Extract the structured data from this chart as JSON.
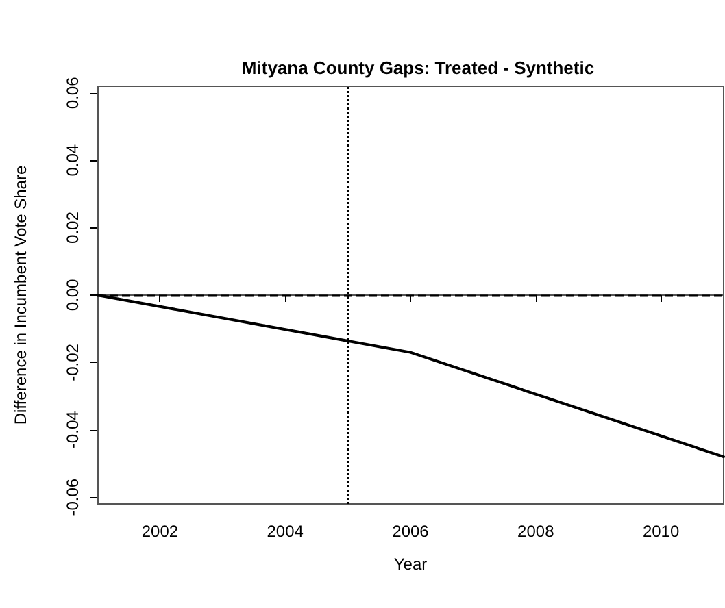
{
  "chart_data": {
    "type": "line",
    "title": "Mityana County Gaps: Treated - Synthetic",
    "xlabel": "Year",
    "ylabel": "Difference in Incumbent Vote Share",
    "x": [
      2001,
      2006,
      2011
    ],
    "series": [
      {
        "color": "#000000",
        "values": [
          0,
          -0.017,
          -0.048
        ]
      }
    ],
    "xlim": [
      2001,
      2011
    ],
    "xticks": [
      2002,
      2004,
      2006,
      2008,
      2010
    ],
    "ylim": [
      -0.062,
      0.062
    ],
    "yticks": [
      {
        "value": -0.06,
        "label": "-0.06"
      },
      {
        "value": -0.04,
        "label": "-0.04"
      },
      {
        "value": -0.02,
        "label": "-0.02"
      },
      {
        "value": 0,
        "label": "0.00"
      },
      {
        "value": 0.02,
        "label": "0.02"
      },
      {
        "value": 0.04,
        "label": "0.04"
      },
      {
        "value": 0.06,
        "label": "0.06"
      }
    ],
    "ref_lines": [
      {
        "axis": "y",
        "value": 0,
        "line_style": "dashed",
        "color": "#000000"
      },
      {
        "axis": "x",
        "value": 2005,
        "line_style": "dotted",
        "color": "#000000"
      }
    ],
    "grid": false,
    "marker": "none",
    "line_style": "solid"
  }
}
